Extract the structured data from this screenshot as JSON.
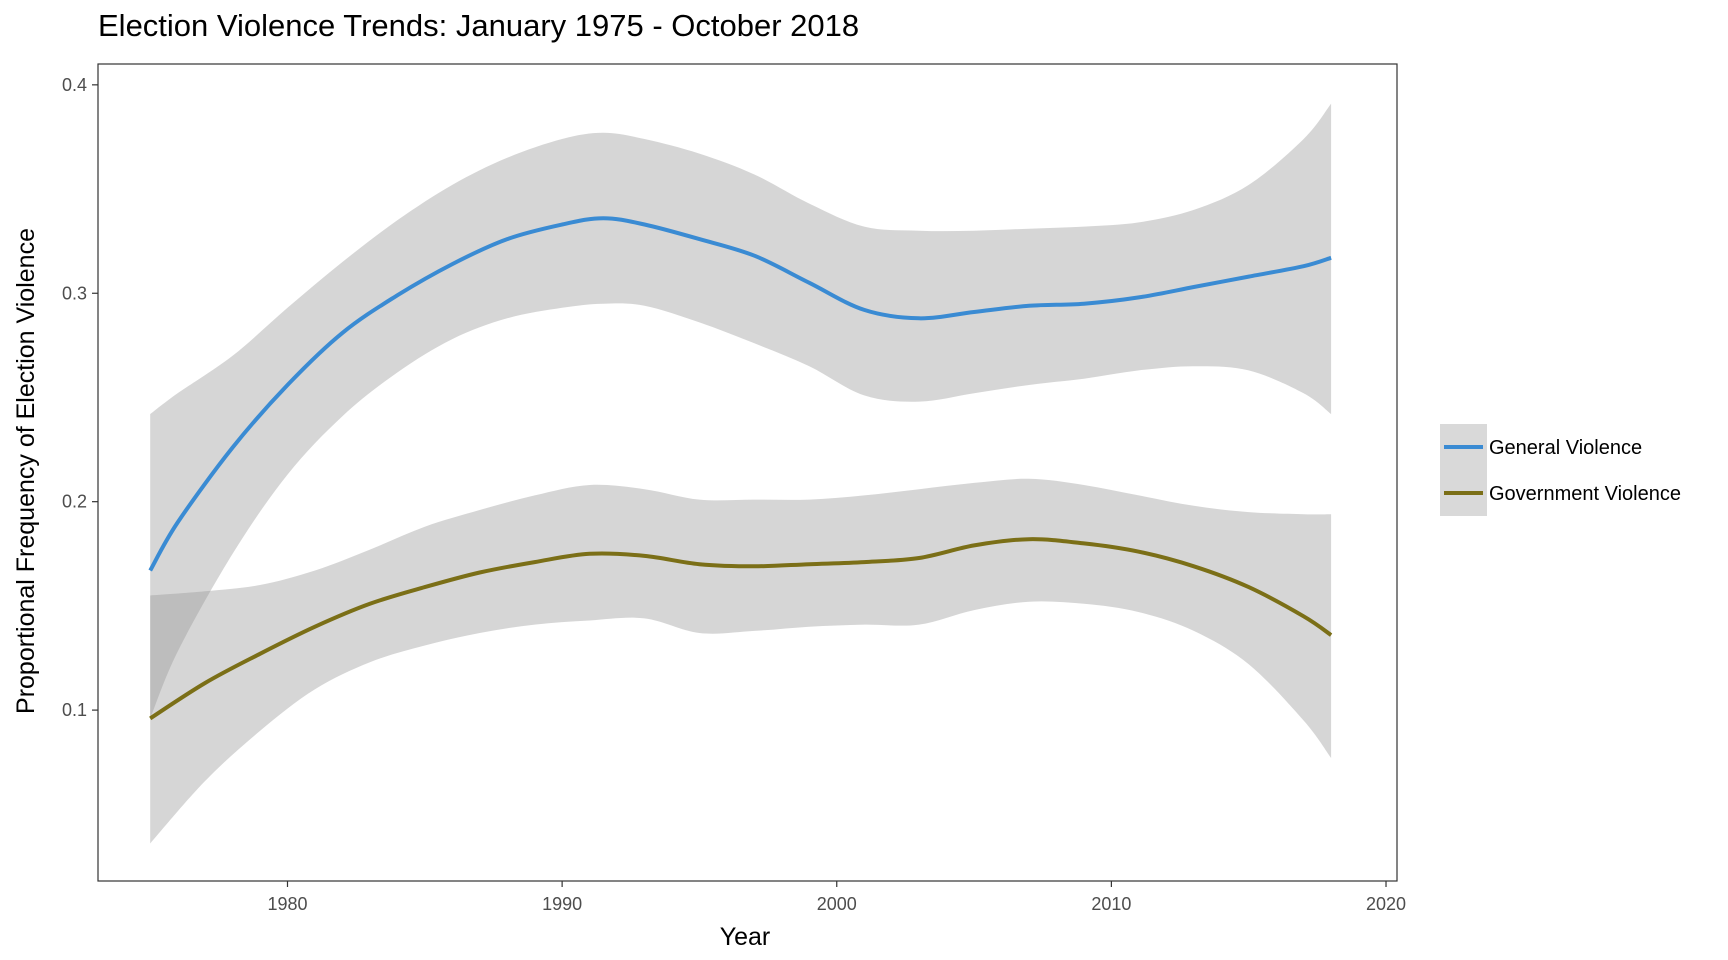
{
  "chart_data": {
    "type": "line",
    "title": "Election Violence Trends: January 1975 - October 2018",
    "xlabel": "Year",
    "ylabel": "Proportional Frequency of Election Violence",
    "xlim": [
      1973.1,
      2020.4
    ],
    "ylim": [
      0.018,
      0.41
    ],
    "x_ticks": [
      1980,
      1990,
      2000,
      2010,
      2020
    ],
    "y_ticks": [
      0.1,
      0.2,
      0.3,
      0.4
    ],
    "x_tick_labels": [
      "1980",
      "1990",
      "2000",
      "2010",
      "2020"
    ],
    "y_tick_labels": [
      "0.1",
      "0.2",
      "0.3",
      "0.4"
    ],
    "grid": false,
    "legend_position": "right",
    "ribbon_color": "#d9d9d9",
    "series": [
      {
        "name": "General Violence",
        "color": "#3a8bd3",
        "x": [
          1975,
          1976,
          1978,
          1980,
          1982,
          1984,
          1986,
          1988,
          1990,
          1991.5,
          1993,
          1995,
          1997,
          1999,
          2001,
          2003,
          2005,
          2007,
          2009,
          2011,
          2013,
          2015,
          2017,
          2018
        ],
        "y": [
          0.167,
          0.19,
          0.226,
          0.256,
          0.281,
          0.299,
          0.314,
          0.326,
          0.333,
          0.336,
          0.333,
          0.326,
          0.318,
          0.305,
          0.292,
          0.288,
          0.291,
          0.294,
          0.295,
          0.298,
          0.303,
          0.308,
          0.313,
          0.317
        ],
        "lower": [
          0.096,
          0.128,
          0.175,
          0.213,
          0.241,
          0.262,
          0.278,
          0.288,
          0.293,
          0.295,
          0.294,
          0.286,
          0.276,
          0.265,
          0.251,
          0.248,
          0.252,
          0.256,
          0.259,
          0.263,
          0.265,
          0.263,
          0.252,
          0.242
        ],
        "upper": [
          0.242,
          0.252,
          0.27,
          0.293,
          0.315,
          0.335,
          0.352,
          0.365,
          0.374,
          0.377,
          0.374,
          0.367,
          0.357,
          0.343,
          0.332,
          0.33,
          0.33,
          0.331,
          0.332,
          0.334,
          0.34,
          0.352,
          0.374,
          0.391
        ]
      },
      {
        "name": "Government Violence",
        "color": "#7b6f17",
        "x": [
          1975,
          1977,
          1979,
          1981,
          1983,
          1985,
          1987,
          1989,
          1991,
          1993,
          1995,
          1997,
          1999,
          2001,
          2003,
          2005,
          2007,
          2009,
          2011,
          2013,
          2015,
          2017,
          2018
        ],
        "y": [
          0.096,
          0.113,
          0.127,
          0.14,
          0.151,
          0.159,
          0.166,
          0.171,
          0.175,
          0.174,
          0.17,
          0.169,
          0.17,
          0.171,
          0.173,
          0.179,
          0.182,
          0.18,
          0.176,
          0.169,
          0.159,
          0.145,
          0.136
        ],
        "lower": [
          0.036,
          0.066,
          0.09,
          0.11,
          0.123,
          0.131,
          0.137,
          0.141,
          0.143,
          0.144,
          0.137,
          0.138,
          0.14,
          0.141,
          0.141,
          0.148,
          0.152,
          0.151,
          0.147,
          0.138,
          0.122,
          0.095,
          0.077
        ],
        "upper": [
          0.155,
          0.157,
          0.16,
          0.167,
          0.177,
          0.188,
          0.196,
          0.203,
          0.208,
          0.206,
          0.201,
          0.201,
          0.201,
          0.203,
          0.206,
          0.209,
          0.211,
          0.208,
          0.203,
          0.198,
          0.195,
          0.194,
          0.194
        ]
      }
    ]
  }
}
